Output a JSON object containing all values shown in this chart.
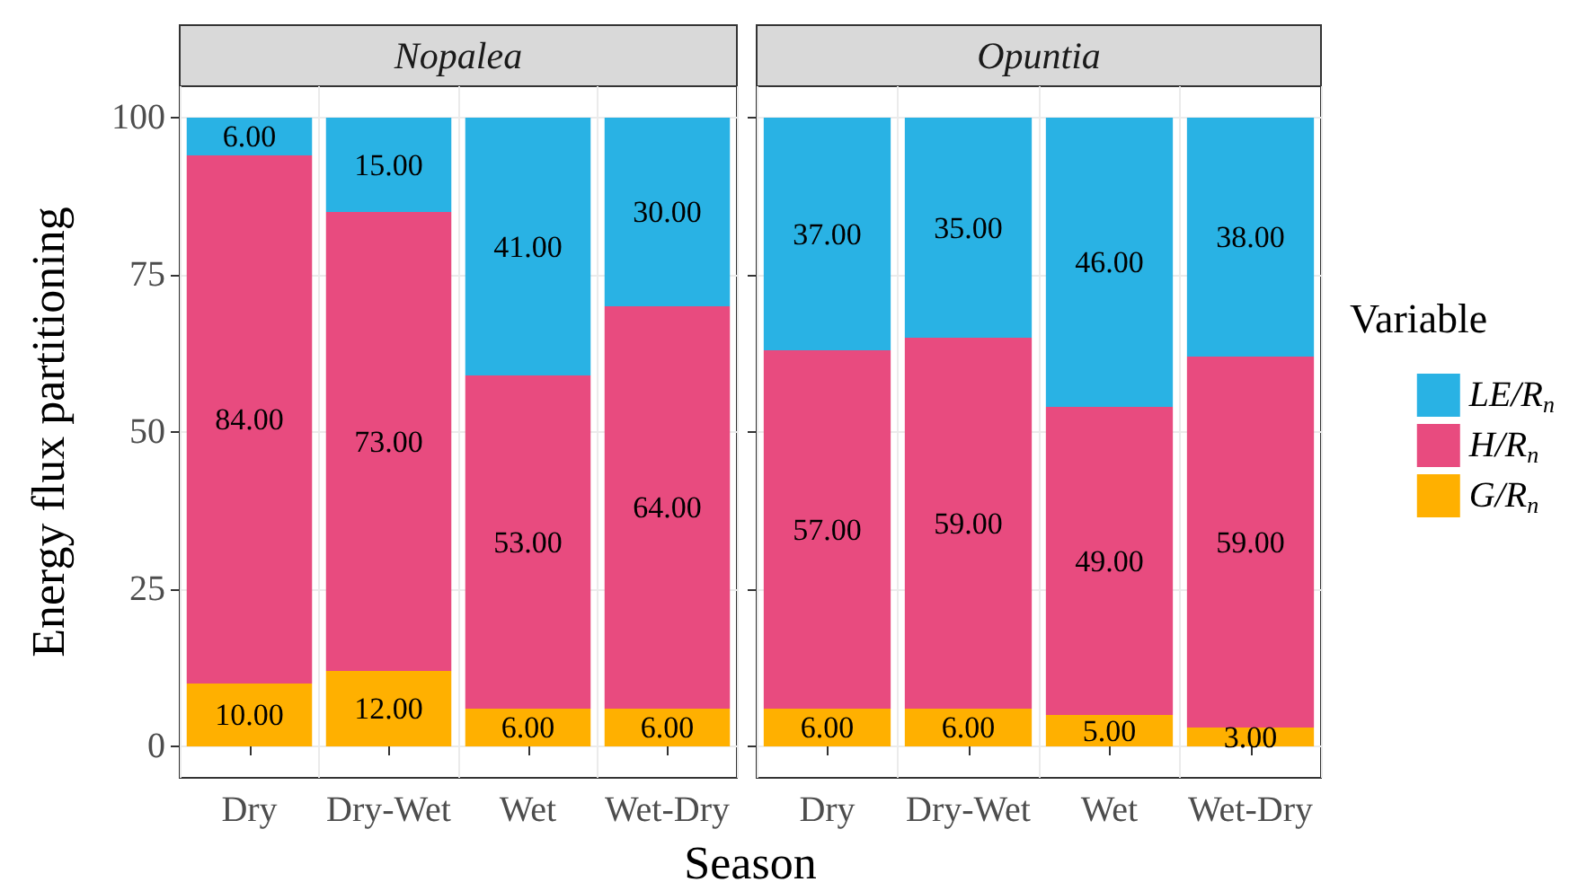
{
  "chart_data": [
    {
      "type": "bar",
      "title": "Nopalea",
      "xlabel": "Season",
      "ylabel": "Energy flux partitioning",
      "categories": [
        "Dry",
        "Dry-Wet",
        "Wet",
        "Wet-Dry"
      ],
      "stacked": true,
      "ylim": [
        -5,
        105
      ],
      "yticks": [
        0,
        25,
        50,
        75,
        100
      ],
      "grid": true,
      "legend": false,
      "series": [
        {
          "color": "#ffb000",
          "values": [
            10,
            12,
            6,
            6
          ],
          "value_labels": [
            "10.00",
            "12.00",
            "6.00",
            "6.00"
          ]
        },
        {
          "color": "#e84b7f",
          "values": [
            84,
            73,
            53,
            64
          ],
          "value_labels": [
            "84.00",
            "73.00",
            "53.00",
            "64.00"
          ]
        },
        {
          "color": "#29b2e4",
          "values": [
            6,
            15,
            41,
            30
          ],
          "value_labels": [
            "6.00",
            "15.00",
            "41.00",
            "30.00"
          ]
        }
      ]
    },
    {
      "type": "bar",
      "title": "Opuntia",
      "categories": [
        "Dry",
        "Dry-Wet",
        "Wet",
        "Wet-Dry"
      ],
      "stacked": true,
      "ylim": [
        -5,
        105
      ],
      "yticks": [
        0,
        25,
        50,
        75,
        100
      ],
      "grid": true,
      "legend": "right",
      "legend_title": "Variable",
      "tick_labels": "x",
      "series": [
        {
          "name": "G/R$_{n}$",
          "color": "#ffb000",
          "values": [
            6,
            6,
            5,
            3
          ],
          "value_labels": [
            "6.00",
            "6.00",
            "5.00",
            "3.00"
          ]
        },
        {
          "name": "H/R$_{n}$",
          "color": "#e84b7f",
          "values": [
            57,
            59,
            49,
            59
          ],
          "value_labels": [
            "57.00",
            "59.00",
            "49.00",
            "59.00"
          ]
        },
        {
          "name": "LE/R$_{n}$",
          "color": "#29b2e4",
          "values": [
            37,
            35,
            46,
            38
          ],
          "value_labels": [
            "37.00",
            "35.00",
            "46.00",
            "38.00"
          ]
        }
      ]
    }
  ]
}
